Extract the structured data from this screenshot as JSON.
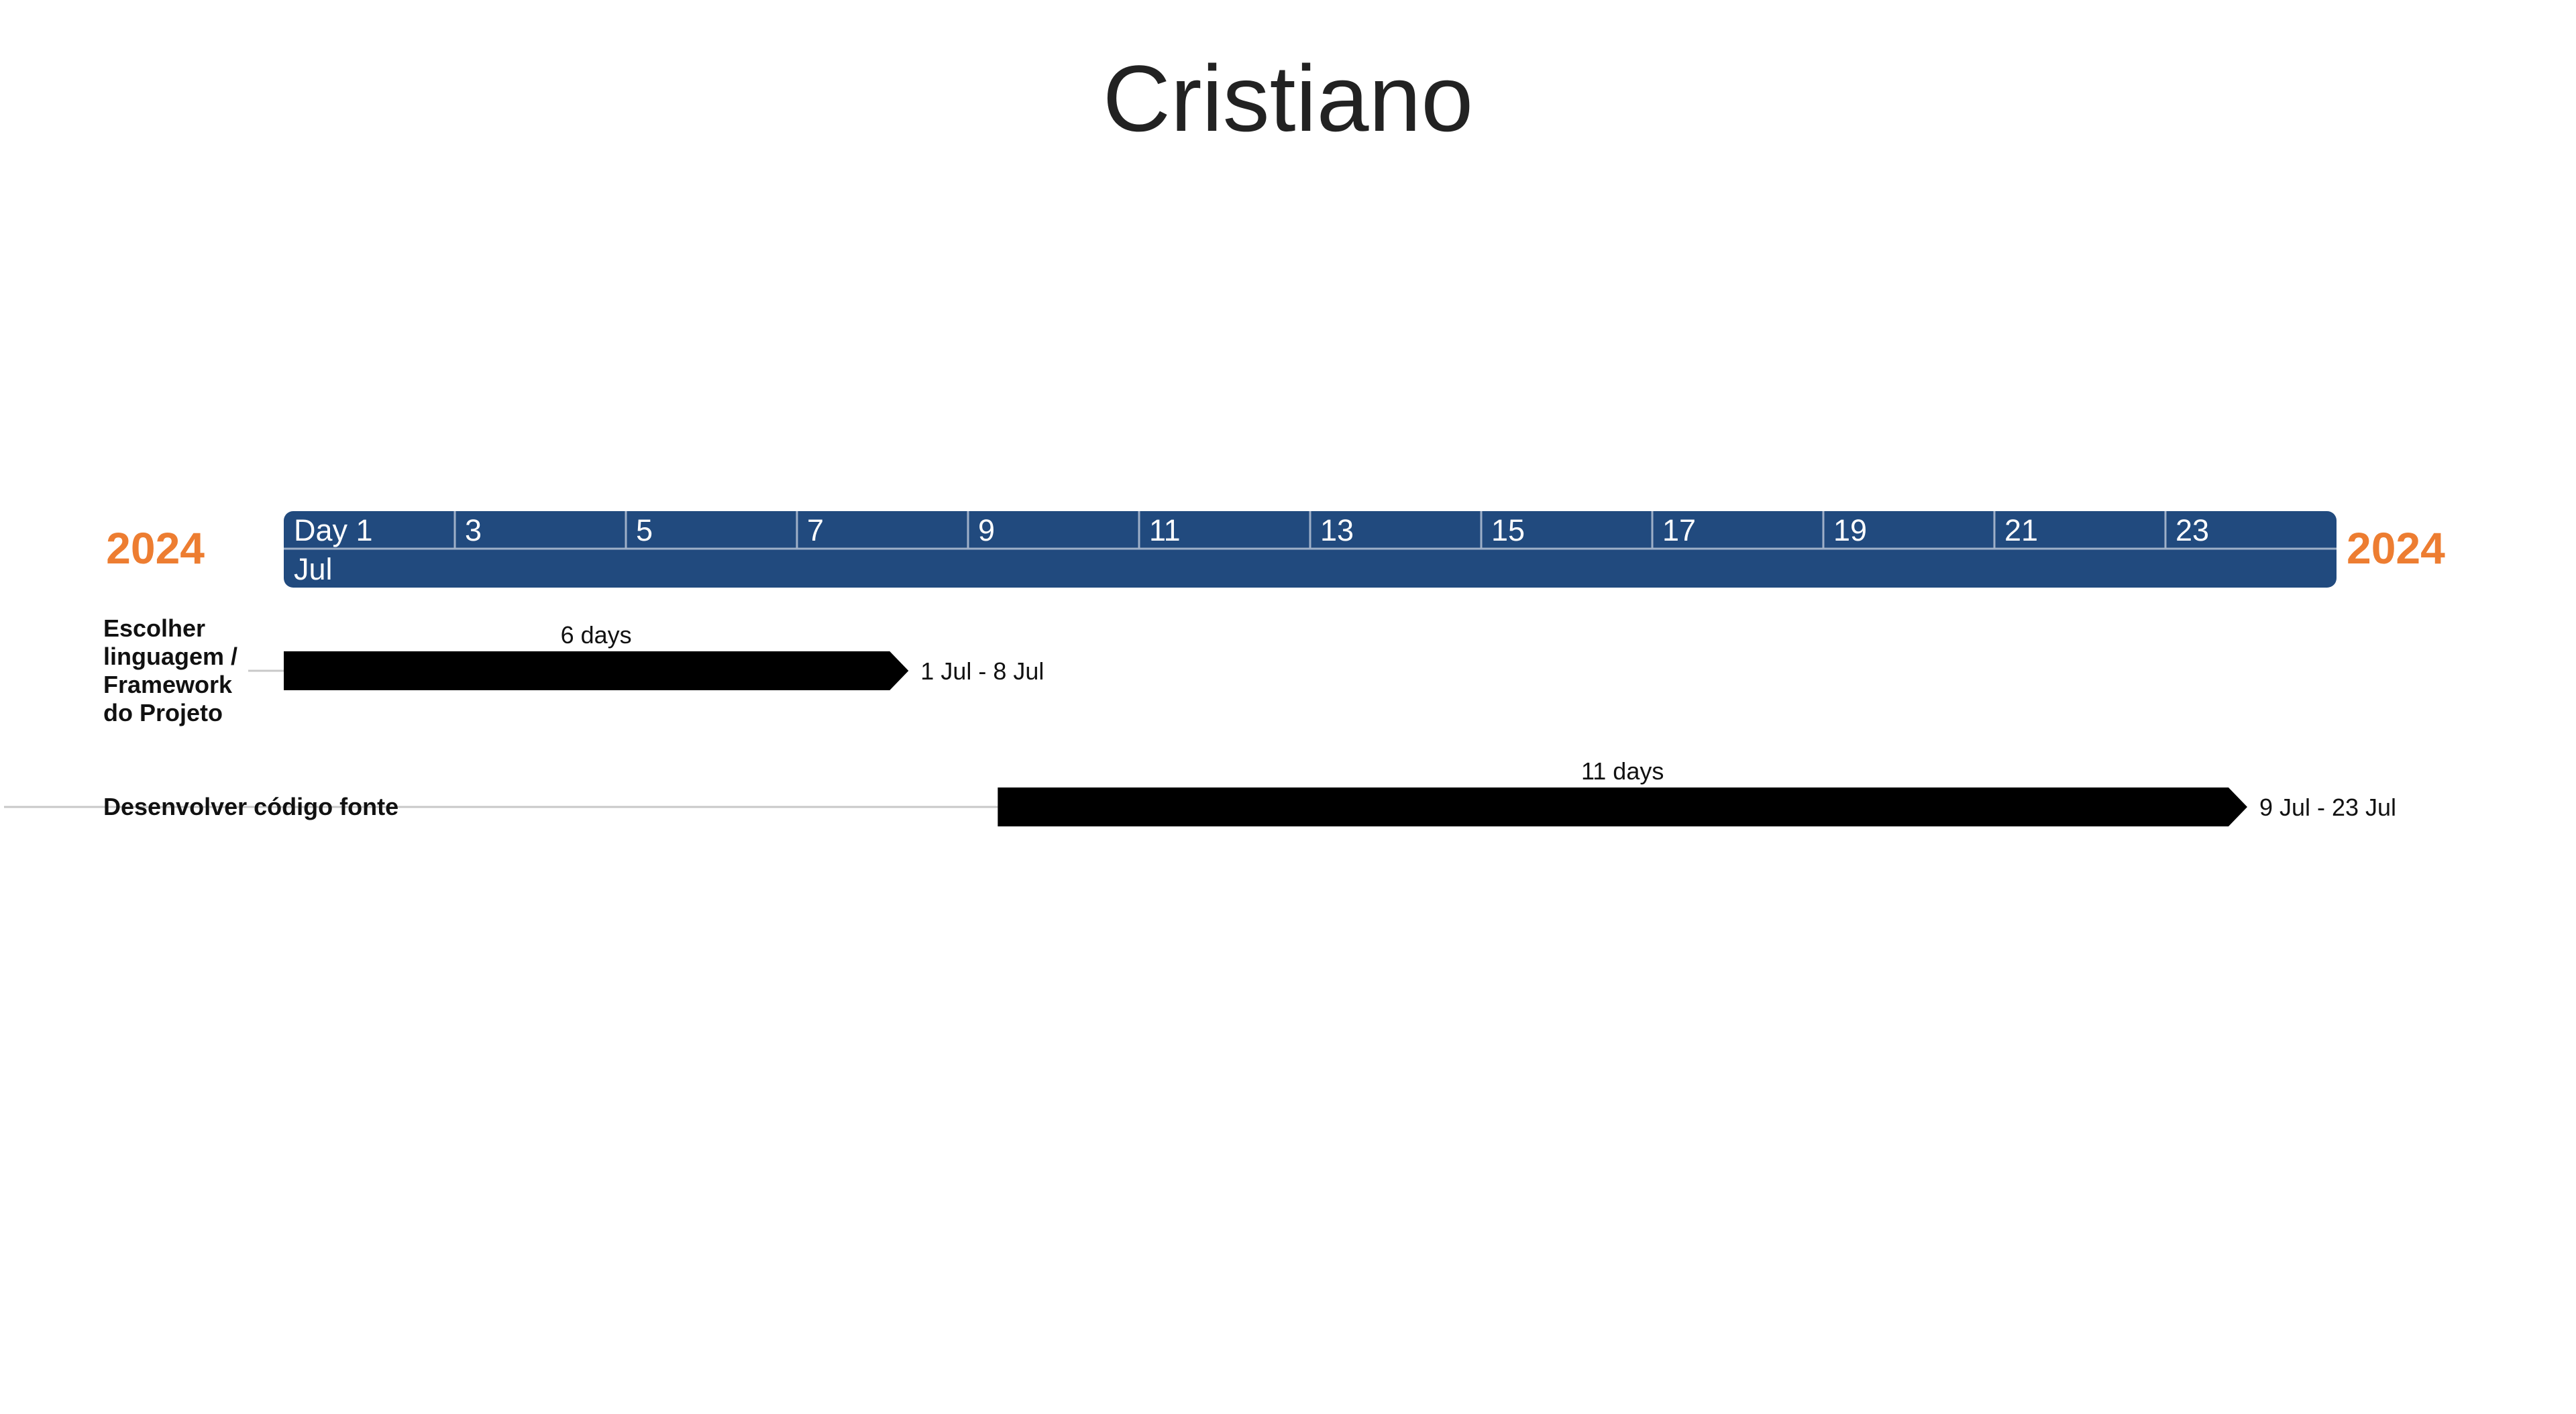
{
  "chart_data": {
    "type": "gantt",
    "title": "Cristiano",
    "year_left": "2024",
    "year_right": "2024",
    "month_label": "Jul",
    "ticks": [
      "Day 1",
      "3",
      "5",
      "7",
      "9",
      "11",
      "13",
      "15",
      "17",
      "19",
      "21",
      "23"
    ],
    "x_range": [
      "2024-07-01",
      "2024-07-24"
    ],
    "tasks": [
      {
        "label": "Escolher linguagem / Framework do Projeto",
        "label_lines": [
          "Escolher",
          "linguagem /",
          "Framework",
          "do Projeto"
        ],
        "start": "2024-07-01",
        "end": "2024-07-08",
        "duration_label": "6 days",
        "range_label": "1 Jul - 8 Jul"
      },
      {
        "label": "Desenvolver código fonte",
        "label_lines": [
          "Desenvolver código fonte"
        ],
        "start": "2024-07-09",
        "end": "2024-07-23",
        "duration_label": "11 days",
        "range_label": "9 Jul - 23 Jul"
      }
    ],
    "colors": {
      "timescale": "#214a7e",
      "year": "#ed7d31",
      "bar": "#000000",
      "connector": "#c8c8c8"
    }
  }
}
